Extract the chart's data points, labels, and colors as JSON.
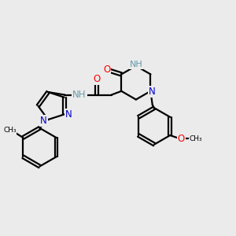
{
  "bg_color": "#ebebeb",
  "black": "#000000",
  "blue": "#0000cc",
  "red": "#ff0000",
  "gray_h": "#6699aa",
  "lw": 1.6,
  "fs": 8.5,
  "fig_w": 3.0,
  "fig_h": 3.0,
  "dpi": 100,
  "xlim": [
    0,
    10
  ],
  "ylim": [
    0,
    10
  ]
}
